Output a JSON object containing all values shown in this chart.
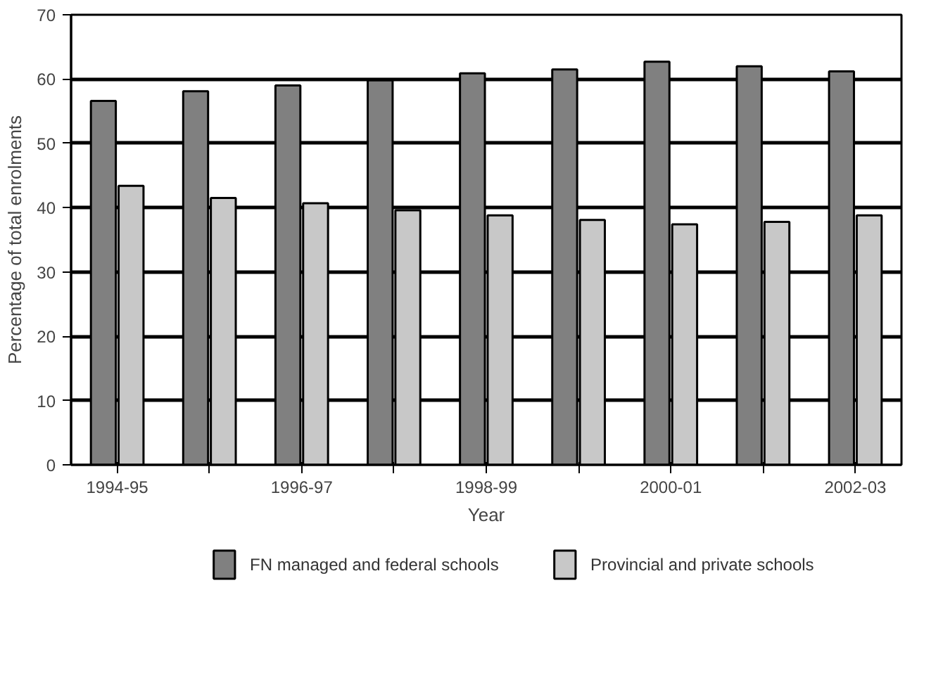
{
  "chart_data": {
    "type": "bar",
    "xlabel": "Year",
    "ylabel": "Percentage of total enrolments",
    "categories": [
      "1994-95",
      null,
      "1996-97",
      null,
      "1998-99",
      null,
      "2000-01",
      null,
      "2002-03"
    ],
    "series": [
      {
        "name": "FN managed and federal schools",
        "color": "#808080",
        "values": [
          56.6,
          58.1,
          59.0,
          59.8,
          60.9,
          61.5,
          62.7,
          62.0,
          61.2
        ]
      },
      {
        "name": "Provincial and private schools",
        "color": "#c8c8c8",
        "values": [
          43.4,
          41.5,
          40.7,
          39.6,
          38.8,
          38.1,
          37.4,
          37.8,
          38.8
        ]
      }
    ],
    "ylim": [
      0,
      70
    ],
    "yticks": [
      0,
      10,
      20,
      30,
      40,
      50,
      60,
      70
    ],
    "grid": "y",
    "legend": "bottom"
  }
}
